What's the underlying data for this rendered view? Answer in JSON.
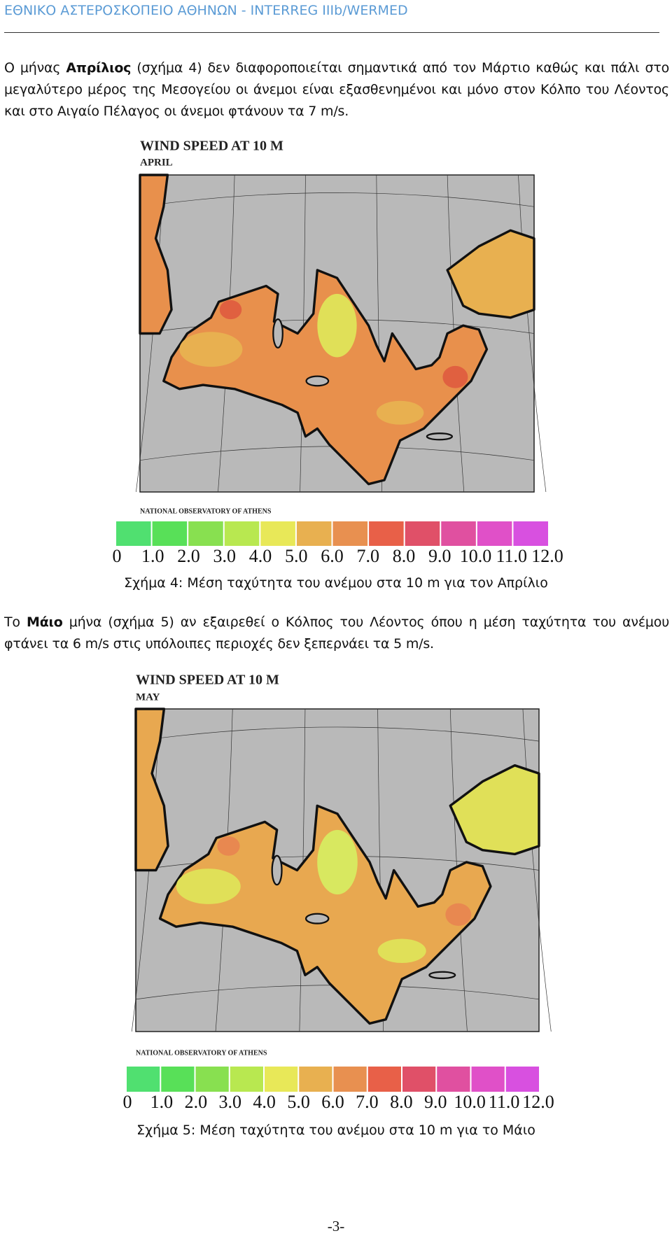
{
  "header": {
    "title": "ΕΘΝΙΚΟ ΑΣΤΕΡΟΣΚΟΠΕΙΟ ΑΘΗΝΩΝ - INTERREG IIIb/WERMED"
  },
  "paragraphs": [
    [
      {
        "text": "Ο μήνας "
      },
      {
        "text": "Απρίλιος",
        "bold": true
      },
      {
        "text": " (σχήμα 4) δεν διαφοροποιείται σημαντικά από τον Μάρτιο καθώς και πάλι στο μεγαλύτερο μέρος της Μεσογείου οι άνεμοι είναι εξασθενημένοι και μόνο στον Κόλπο του Λέοντος και στο Αιγαίο Πέλαγος οι άνεμοι φτάνουν τα 7 m/s."
      }
    ],
    [
      {
        "text": "Το "
      },
      {
        "text": "Μάιο",
        "bold": true
      },
      {
        "text": " μήνα (σχήμα 5) αν εξαιρεθεί ο Κόλπος του Λέοντος όπου η μέση ταχύτητα του ανέμου φτάνει τα 6 m/s στις υπόλοιπες περιοχές δεν ξεπερνάει τα 5 m/s."
      }
    ]
  ],
  "figures": [
    {
      "title": "WIND SPEED AT 10 M",
      "subtitle": "APRIL",
      "credit": "NATIONAL OBSERVATORY OF ATHENS",
      "scale_labels": [
        "0",
        "1.0",
        "2.0",
        "3.0",
        "4.0",
        "5.0",
        "6.0",
        "7.0",
        "8.0",
        "9.0",
        "10.0",
        "11.0",
        "12.0"
      ],
      "caption": "Σχήμα 4: Μέση ταχύτητα του ανέμου στα 10 m για τον Απρίλιο"
    },
    {
      "title": "WIND SPEED AT 10 M",
      "subtitle": "MAY",
      "credit": "NATIONAL OBSERVATORY OF ATHENS",
      "scale_labels": [
        "0",
        "1.0",
        "2.0",
        "3.0",
        "4.0",
        "5.0",
        "6.0",
        "7.0",
        "8.0",
        "9.0",
        "10.0",
        "11.0",
        "12.0"
      ],
      "caption": "Σχήμα 5: Μέση ταχύτητα του ανέμου στα 10 m για το Μάιο"
    }
  ],
  "page_number": "-3-"
}
